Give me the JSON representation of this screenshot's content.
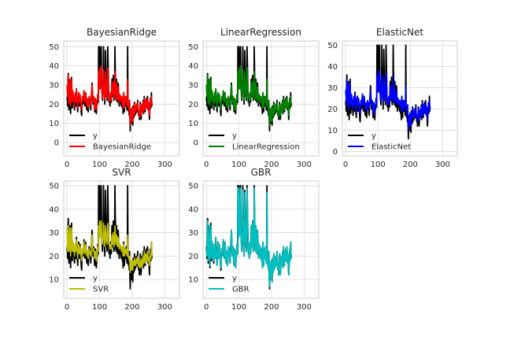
{
  "chart_data": [
    {
      "type": "line",
      "title": "BayesianRidge",
      "xlim": [
        -10,
        345
      ],
      "ylim": [
        -7,
        53
      ],
      "xticks": [
        0,
        100,
        200,
        300
      ],
      "yticks": [
        0,
        10,
        20,
        30,
        40,
        50
      ],
      "legend": [
        "y",
        "BayesianRidge"
      ],
      "legend_position": "lower-left",
      "series": [
        {
          "name": "y",
          "color": "#000000"
        },
        {
          "name": "BayesianRidge",
          "color": "#ff0000"
        }
      ]
    },
    {
      "type": "line",
      "title": "LinearRegression",
      "xlim": [
        -10,
        345
      ],
      "ylim": [
        -7,
        53
      ],
      "xticks": [
        0,
        100,
        200,
        300
      ],
      "yticks": [
        0,
        10,
        20,
        30,
        40,
        50
      ],
      "legend": [
        "y",
        "LinearRegression"
      ],
      "legend_position": "lower-left",
      "series": [
        {
          "name": "y",
          "color": "#000000"
        },
        {
          "name": "LinearRegression",
          "color": "#008000"
        }
      ]
    },
    {
      "type": "line",
      "title": "ElasticNet",
      "xlim": [
        -10,
        345
      ],
      "ylim": [
        -2,
        52
      ],
      "xticks": [
        0,
        100,
        200,
        300
      ],
      "yticks": [
        0,
        10,
        20,
        30,
        40,
        50
      ],
      "legend": [
        "y",
        "ElasticNet"
      ],
      "legend_position": "lower-left",
      "series": [
        {
          "name": "y",
          "color": "#000000"
        },
        {
          "name": "ElasticNet",
          "color": "#0000ff"
        }
      ]
    },
    {
      "type": "line",
      "title": "SVR",
      "xlim": [
        -10,
        345
      ],
      "ylim": [
        2,
        52
      ],
      "xticks": [
        0,
        100,
        200,
        300
      ],
      "yticks": [
        10,
        20,
        30,
        40,
        50
      ],
      "legend": [
        "y",
        "SVR"
      ],
      "legend_position": "lower-left",
      "series": [
        {
          "name": "y",
          "color": "#000000"
        },
        {
          "name": "SVR",
          "color": "#bfbf00"
        }
      ]
    },
    {
      "type": "line",
      "title": "GBR",
      "xlim": [
        -10,
        345
      ],
      "ylim": [
        2,
        52
      ],
      "xticks": [
        0,
        100,
        200,
        300
      ],
      "yticks": [
        10,
        20,
        30,
        40,
        50
      ],
      "legend": [
        "y",
        "GBR"
      ],
      "legend_position": "lower-left",
      "series": [
        {
          "name": "y",
          "color": "#000000"
        },
        {
          "name": "GBR",
          "color": "#00bfbf"
        }
      ]
    }
  ],
  "y_true": [
    22,
    24,
    19,
    31,
    36,
    21,
    17,
    23,
    28,
    33,
    20,
    15,
    22,
    27,
    34,
    25,
    18,
    21,
    26,
    24,
    20,
    23,
    19,
    17,
    22,
    25,
    21,
    19,
    23,
    28,
    24,
    20,
    18,
    16,
    21,
    24,
    26,
    23,
    19,
    21,
    25,
    22,
    20,
    18,
    15,
    14,
    19,
    23,
    21,
    20,
    22,
    24,
    27,
    23,
    21,
    19,
    22,
    26,
    25,
    21,
    18,
    17,
    20,
    22,
    19,
    16,
    18,
    21,
    24,
    22,
    20,
    23,
    19,
    17,
    21,
    25,
    28,
    31,
    27,
    23,
    20,
    21,
    24,
    22,
    18,
    16,
    19,
    23,
    21,
    17,
    15,
    18,
    22,
    20,
    25,
    24,
    21,
    50,
    31,
    28,
    50,
    44,
    37,
    29,
    41,
    50,
    35,
    27,
    24,
    22,
    26,
    31,
    50,
    37,
    28,
    24,
    20,
    30,
    48,
    39,
    32,
    24,
    27,
    22,
    36,
    50,
    42,
    34,
    24,
    21,
    25,
    22,
    19,
    24,
    26,
    23,
    21,
    28,
    33,
    29,
    24,
    30,
    35,
    25,
    22,
    27,
    23,
    50,
    38,
    31,
    27,
    22,
    33,
    29,
    25,
    21,
    24,
    31,
    28,
    23,
    19,
    21,
    25,
    22,
    23,
    24,
    20,
    19,
    23,
    22,
    18,
    21,
    15,
    24,
    26,
    18,
    16,
    20,
    23,
    22,
    19,
    20,
    24,
    21,
    17,
    20,
    50,
    22,
    17,
    16,
    19,
    14,
    22,
    12,
    6,
    13,
    17,
    15,
    10,
    18,
    11,
    14,
    9,
    19,
    16,
    13,
    17,
    21,
    14,
    19,
    16,
    15,
    18,
    20,
    17,
    16,
    19,
    22,
    18,
    15,
    14,
    16,
    12,
    15,
    18,
    21,
    17,
    12,
    14,
    19,
    17,
    20,
    16,
    18,
    22,
    15,
    19,
    24,
    20,
    17,
    16,
    21,
    22,
    19,
    23,
    18,
    20,
    24,
    22,
    17,
    21,
    19,
    15,
    12,
    16,
    20,
    23,
    18,
    22,
    26,
    19,
    21
  ],
  "pred_bayes": [
    30,
    26,
    24,
    31,
    35,
    22,
    20,
    26,
    30,
    33,
    23,
    19,
    25,
    29,
    33,
    27,
    21,
    23,
    27,
    25,
    22,
    24,
    21,
    19,
    24,
    26,
    23,
    21,
    24,
    28,
    25,
    22,
    20,
    18,
    22,
    25,
    26,
    24,
    21,
    22,
    25,
    23,
    21,
    20,
    17,
    17,
    21,
    24,
    22,
    22,
    23,
    25,
    27,
    24,
    22,
    21,
    23,
    26,
    25,
    22,
    20,
    19,
    21,
    23,
    20,
    18,
    19,
    22,
    24,
    23,
    21,
    23,
    20,
    19,
    22,
    25,
    28,
    30,
    27,
    24,
    21,
    22,
    24,
    22,
    19,
    17,
    20,
    23,
    22,
    18,
    17,
    19,
    22,
    21,
    25,
    24,
    22,
    37,
    31,
    28,
    39,
    36,
    32,
    28,
    34,
    40,
    32,
    27,
    25,
    23,
    26,
    30,
    38,
    33,
    28,
    25,
    22,
    29,
    37,
    34,
    30,
    25,
    27,
    23,
    32,
    39,
    35,
    31,
    25,
    23,
    25,
    23,
    21,
    24,
    26,
    24,
    22,
    28,
    31,
    28,
    25,
    29,
    32,
    26,
    23,
    27,
    24,
    37,
    33,
    29,
    27,
    23,
    31,
    28,
    25,
    22,
    24,
    29,
    27,
    24,
    21,
    22,
    25,
    23,
    24,
    24,
    22,
    21,
    24,
    23,
    20,
    22,
    18,
    25,
    26,
    20,
    18,
    21,
    24,
    23,
    21,
    21,
    24,
    22,
    19,
    21,
    33,
    23,
    19,
    18,
    20,
    16,
    22,
    14,
    9,
    14,
    17,
    16,
    11,
    18,
    12,
    15,
    11,
    18,
    16,
    14,
    17,
    20,
    15,
    19,
    17,
    16,
    18,
    20,
    17,
    17,
    19,
    21,
    18,
    16,
    15,
    16,
    13,
    16,
    18,
    20,
    17,
    14,
    15,
    19,
    17,
    20,
    16,
    18,
    21,
    16,
    19,
    23,
    20,
    18,
    17,
    21,
    22,
    19,
    22,
    18,
    20,
    23,
    21,
    18,
    21,
    19,
    16,
    14,
    17,
    20,
    22,
    19,
    22,
    24,
    20,
    21
  ],
  "pred_linear": [
    30,
    26,
    24,
    31,
    35,
    22,
    20,
    26,
    30,
    33,
    23,
    19,
    25,
    29,
    33,
    27,
    21,
    23,
    27,
    25,
    22,
    24,
    21,
    19,
    24,
    26,
    23,
    21,
    24,
    28,
    25,
    22,
    20,
    18,
    22,
    25,
    26,
    24,
    21,
    22,
    25,
    23,
    21,
    20,
    17,
    17,
    21,
    24,
    22,
    22,
    23,
    25,
    27,
    24,
    22,
    21,
    23,
    26,
    25,
    22,
    20,
    19,
    21,
    23,
    20,
    18,
    19,
    22,
    24,
    23,
    21,
    23,
    20,
    19,
    22,
    25,
    28,
    30,
    27,
    24,
    21,
    22,
    24,
    22,
    19,
    17,
    20,
    23,
    22,
    18,
    17,
    19,
    22,
    21,
    25,
    24,
    22,
    37,
    31,
    28,
    39,
    36,
    32,
    28,
    34,
    40,
    32,
    27,
    25,
    23,
    26,
    30,
    38,
    33,
    28,
    25,
    22,
    29,
    37,
    34,
    30,
    25,
    27,
    23,
    32,
    39,
    35,
    31,
    25,
    23,
    25,
    23,
    21,
    24,
    26,
    24,
    22,
    28,
    31,
    28,
    25,
    29,
    32,
    26,
    23,
    27,
    24,
    37,
    33,
    29,
    27,
    23,
    31,
    28,
    25,
    22,
    24,
    29,
    27,
    24,
    21,
    22,
    25,
    23,
    24,
    24,
    22,
    21,
    24,
    23,
    20,
    22,
    18,
    25,
    26,
    20,
    18,
    21,
    24,
    23,
    21,
    21,
    24,
    22,
    19,
    21,
    33,
    23,
    19,
    18,
    20,
    16,
    22,
    14,
    9,
    14,
    17,
    16,
    11,
    18,
    12,
    15,
    11,
    18,
    16,
    14,
    17,
    20,
    15,
    19,
    17,
    16,
    18,
    20,
    17,
    17,
    19,
    21,
    18,
    16,
    15,
    16,
    13,
    16,
    18,
    20,
    17,
    14,
    15,
    19,
    17,
    20,
    16,
    18,
    21,
    16,
    19,
    23,
    20,
    18,
    17,
    21,
    22,
    19,
    22,
    18,
    20,
    23,
    21,
    18,
    21,
    19,
    16,
    14,
    17,
    20,
    22,
    19,
    22,
    24,
    20,
    21
  ],
  "pred_elastic": [
    29,
    26,
    24,
    30,
    34,
    23,
    21,
    26,
    29,
    32,
    23,
    20,
    25,
    28,
    32,
    27,
    22,
    23,
    27,
    25,
    22,
    24,
    22,
    20,
    24,
    26,
    23,
    22,
    24,
    27,
    25,
    22,
    21,
    19,
    22,
    25,
    26,
    24,
    22,
    22,
    25,
    23,
    22,
    21,
    18,
    18,
    22,
    24,
    22,
    22,
    23,
    25,
    27,
    24,
    22,
    22,
    23,
    26,
    25,
    23,
    21,
    20,
    22,
    23,
    21,
    19,
    20,
    22,
    24,
    23,
    22,
    23,
    21,
    20,
    22,
    25,
    27,
    29,
    26,
    24,
    22,
    22,
    24,
    22,
    20,
    18,
    21,
    23,
    22,
    19,
    18,
    20,
    22,
    21,
    25,
    24,
    22,
    35,
    30,
    28,
    37,
    34,
    31,
    28,
    33,
    38,
    31,
    27,
    25,
    24,
    26,
    29,
    36,
    32,
    28,
    25,
    23,
    29,
    35,
    33,
    29,
    25,
    27,
    24,
    31,
    37,
    34,
    30,
    25,
    23,
    25,
    23,
    22,
    24,
    26,
    24,
    22,
    28,
    30,
    28,
    25,
    28,
    31,
    26,
    24,
    27,
    24,
    35,
    32,
    29,
    27,
    24,
    30,
    28,
    25,
    23,
    24,
    28,
    27,
    24,
    22,
    23,
    25,
    23,
    24,
    24,
    22,
    22,
    24,
    23,
    21,
    22,
    19,
    25,
    26,
    21,
    19,
    22,
    24,
    23,
    21,
    22,
    24,
    22,
    20,
    22,
    31,
    23,
    20,
    19,
    21,
    17,
    22,
    15,
    10,
    15,
    17,
    16,
    12,
    18,
    13,
    16,
    12,
    18,
    16,
    15,
    17,
    20,
    16,
    19,
    17,
    16,
    18,
    20,
    17,
    17,
    19,
    21,
    18,
    16,
    16,
    17,
    14,
    16,
    18,
    20,
    17,
    15,
    16,
    19,
    17,
    20,
    16,
    18,
    21,
    17,
    19,
    23,
    20,
    18,
    17,
    21,
    22,
    19,
    22,
    18,
    20,
    23,
    21,
    18,
    21,
    19,
    17,
    15,
    18,
    20,
    22,
    19,
    22,
    24,
    20,
    21
  ],
  "pred_svr": [
    31,
    27,
    22,
    29,
    33,
    23,
    22,
    25,
    29,
    32,
    24,
    20,
    24,
    28,
    32,
    27,
    22,
    23,
    26,
    25,
    22,
    23,
    22,
    20,
    23,
    25,
    23,
    22,
    23,
    27,
    24,
    22,
    21,
    19,
    22,
    24,
    25,
    23,
    21,
    22,
    24,
    23,
    21,
    20,
    19,
    18,
    21,
    23,
    22,
    21,
    22,
    24,
    26,
    23,
    22,
    21,
    22,
    25,
    24,
    22,
    21,
    20,
    21,
    22,
    20,
    19,
    20,
    22,
    23,
    22,
    21,
    22,
    20,
    20,
    22,
    24,
    27,
    29,
    26,
    24,
    22,
    22,
    23,
    22,
    20,
    19,
    20,
    22,
    21,
    19,
    18,
    20,
    22,
    21,
    24,
    24,
    22,
    33,
    30,
    28,
    35,
    33,
    30,
    28,
    32,
    35,
    31,
    28,
    26,
    25,
    26,
    29,
    34,
    31,
    28,
    26,
    24,
    29,
    33,
    31,
    29,
    26,
    27,
    25,
    30,
    34,
    32,
    30,
    26,
    25,
    25,
    24,
    23,
    24,
    25,
    24,
    23,
    27,
    29,
    27,
    25,
    28,
    30,
    26,
    24,
    27,
    25,
    33,
    31,
    28,
    27,
    25,
    29,
    28,
    26,
    24,
    25,
    28,
    27,
    25,
    23,
    23,
    25,
    24,
    24,
    24,
    23,
    22,
    24,
    23,
    22,
    22,
    20,
    24,
    25,
    21,
    20,
    21,
    23,
    22,
    21,
    21,
    23,
    22,
    20,
    21,
    29,
    22,
    20,
    19,
    20,
    18,
    20,
    16,
    13,
    16,
    17,
    16,
    14,
    18,
    15,
    16,
    14,
    18,
    16,
    16,
    17,
    19,
    16,
    18,
    17,
    16,
    17,
    19,
    17,
    17,
    18,
    20,
    17,
    16,
    16,
    17,
    15,
    16,
    17,
    19,
    17,
    15,
    16,
    18,
    17,
    19,
    16,
    17,
    20,
    17,
    18,
    22,
    19,
    18,
    17,
    20,
    21,
    19,
    21,
    18,
    19,
    22,
    20,
    18,
    20,
    19,
    17,
    16,
    18,
    19,
    21,
    19,
    21,
    26,
    20,
    21
  ],
  "pred_gbr": [
    22,
    23,
    20,
    30,
    35,
    21,
    18,
    23,
    28,
    33,
    21,
    16,
    22,
    27,
    33,
    25,
    19,
    21,
    26,
    24,
    20,
    23,
    19,
    18,
    22,
    25,
    21,
    19,
    23,
    28,
    24,
    20,
    18,
    16,
    21,
    24,
    26,
    23,
    19,
    21,
    25,
    22,
    20,
    18,
    15,
    15,
    19,
    23,
    21,
    20,
    22,
    24,
    27,
    23,
    21,
    19,
    22,
    26,
    25,
    21,
    18,
    17,
    20,
    22,
    19,
    16,
    18,
    21,
    24,
    22,
    20,
    23,
    19,
    17,
    21,
    25,
    28,
    31,
    27,
    23,
    20,
    21,
    24,
    22,
    18,
    16,
    19,
    23,
    21,
    17,
    15,
    18,
    22,
    20,
    25,
    24,
    21,
    49,
    31,
    28,
    49,
    44,
    37,
    29,
    41,
    49,
    35,
    27,
    24,
    22,
    26,
    31,
    48,
    37,
    28,
    24,
    20,
    30,
    47,
    39,
    32,
    24,
    27,
    22,
    36,
    49,
    42,
    34,
    24,
    21,
    25,
    22,
    19,
    24,
    26,
    23,
    21,
    28,
    33,
    29,
    24,
    30,
    35,
    25,
    22,
    27,
    23,
    49,
    38,
    31,
    27,
    22,
    33,
    29,
    25,
    21,
    24,
    31,
    28,
    23,
    19,
    21,
    25,
    22,
    23,
    24,
    20,
    19,
    23,
    22,
    18,
    21,
    15,
    24,
    26,
    18,
    16,
    20,
    23,
    22,
    19,
    20,
    24,
    21,
    17,
    20,
    47,
    22,
    17,
    16,
    19,
    14,
    22,
    12,
    7,
    13,
    17,
    15,
    10,
    18,
    11,
    14,
    9,
    19,
    16,
    13,
    17,
    21,
    14,
    19,
    16,
    15,
    18,
    20,
    17,
    16,
    19,
    22,
    18,
    15,
    14,
    16,
    12,
    15,
    18,
    21,
    17,
    12,
    14,
    19,
    17,
    20,
    16,
    18,
    22,
    15,
    19,
    24,
    20,
    17,
    16,
    21,
    22,
    19,
    23,
    18,
    20,
    24,
    22,
    17,
    21,
    19,
    15,
    12,
    16,
    20,
    23,
    18,
    22,
    26,
    19,
    21
  ]
}
